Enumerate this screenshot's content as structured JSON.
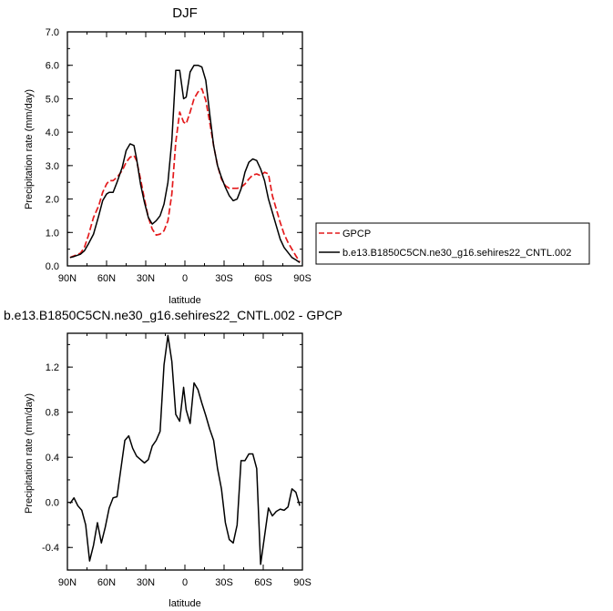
{
  "chart_data": [
    {
      "type": "line",
      "title": "DJF",
      "xlabel": "latitude",
      "ylabel": "Precipitation rate (mm/day)",
      "xlim": [
        90,
        -90
      ],
      "ylim": [
        0,
        7
      ],
      "xtick_values": [
        90,
        60,
        30,
        0,
        -30,
        -60,
        -90
      ],
      "xtick_labels": [
        "90N",
        "60N",
        "30N",
        "0",
        "30S",
        "60S",
        "90S"
      ],
      "ytick_values": [
        0,
        1,
        2,
        3,
        4,
        5,
        6,
        7
      ],
      "ytick_labels": [
        "0.0",
        "1.0",
        "2.0",
        "3.0",
        "4.0",
        "5.0",
        "6.0",
        "7.0"
      ],
      "grid": false,
      "legend_position": "right",
      "series": [
        {
          "name": "GPCP",
          "color": "#e41a1c",
          "dash": "dashed",
          "x": [
            88,
            85,
            80,
            77,
            74,
            70,
            66,
            63,
            60,
            58,
            55,
            52,
            48,
            45,
            42,
            39,
            37,
            34,
            31,
            28,
            25,
            22,
            19,
            16,
            13,
            10,
            7,
            4,
            1,
            -1,
            -4,
            -7,
            -10,
            -13,
            -16,
            -19,
            -22,
            -25,
            -28,
            -31,
            -34,
            -37,
            -40,
            -43,
            -46,
            -49,
            -52,
            -55,
            -58,
            -61,
            -64,
            -67,
            -70,
            -73,
            -76,
            -79,
            -82,
            -85,
            -88
          ],
          "y": [
            0.25,
            0.3,
            0.38,
            0.55,
            0.9,
            1.45,
            1.8,
            2.2,
            2.45,
            2.55,
            2.55,
            2.65,
            2.85,
            3.1,
            3.25,
            3.3,
            3.15,
            2.6,
            2.0,
            1.45,
            1.1,
            0.92,
            0.95,
            1.05,
            1.35,
            2.15,
            3.7,
            4.6,
            4.3,
            4.25,
            4.6,
            5.0,
            5.2,
            5.3,
            4.95,
            4.3,
            3.6,
            3.0,
            2.6,
            2.4,
            2.32,
            2.32,
            2.32,
            2.35,
            2.45,
            2.6,
            2.72,
            2.75,
            2.7,
            2.8,
            2.75,
            2.1,
            1.7,
            1.3,
            0.95,
            0.7,
            0.5,
            0.3,
            0.12
          ]
        },
        {
          "name": "b.e13.B1850C5CN.ne30_g16.sehires22_CNTL.002",
          "color": "#000000",
          "dash": "solid",
          "x": [
            88,
            85,
            80,
            77,
            74,
            70,
            66,
            63,
            60,
            58,
            55,
            52,
            48,
            45,
            42,
            39,
            37,
            34,
            31,
            28,
            25,
            22,
            19,
            16,
            13,
            10,
            7,
            4,
            1,
            -1,
            -4,
            -7,
            -10,
            -13,
            -16,
            -19,
            -22,
            -25,
            -28,
            -31,
            -34,
            -37,
            -40,
            -43,
            -46,
            -49,
            -52,
            -55,
            -58,
            -61,
            -64,
            -67,
            -70,
            -73,
            -76,
            -79,
            -82,
            -85,
            -88
          ],
          "y": [
            0.25,
            0.28,
            0.35,
            0.45,
            0.65,
            0.95,
            1.5,
            1.95,
            2.15,
            2.2,
            2.2,
            2.5,
            2.95,
            3.45,
            3.65,
            3.6,
            3.2,
            2.45,
            1.9,
            1.45,
            1.25,
            1.35,
            1.5,
            1.85,
            2.5,
            3.75,
            5.85,
            5.85,
            5.0,
            5.05,
            5.8,
            6.0,
            6.0,
            5.95,
            5.55,
            4.55,
            3.6,
            3.0,
            2.65,
            2.35,
            2.1,
            1.95,
            2.0,
            2.3,
            2.8,
            3.1,
            3.2,
            3.15,
            2.9,
            2.55,
            2.0,
            1.6,
            1.2,
            0.8,
            0.55,
            0.4,
            0.25,
            0.18,
            0.1
          ]
        }
      ]
    },
    {
      "type": "line",
      "title": "b.e13.B1850C5CN.ne30_g16.sehires22_CNTL.002 - GPCP",
      "xlabel": "latitude",
      "ylabel": "Precipitation rate (mm/day)",
      "xlim": [
        90,
        -90
      ],
      "ylim": [
        -0.6,
        1.5
      ],
      "xtick_values": [
        90,
        60,
        30,
        0,
        -30,
        -60,
        -90
      ],
      "xtick_labels": [
        "90N",
        "60N",
        "30N",
        "0",
        "30S",
        "60S",
        "90S"
      ],
      "ytick_values": [
        -0.4,
        0,
        0.4,
        0.8,
        1.2
      ],
      "ytick_labels": [
        "-0.4",
        "0.0",
        "0.4",
        "0.8",
        "1.2"
      ],
      "grid": false,
      "series": [
        {
          "color": "#000000",
          "dash": "solid",
          "x": [
            88,
            85,
            82,
            79,
            76,
            73,
            70,
            67,
            64,
            61,
            58,
            55,
            52,
            49,
            46,
            43,
            40,
            37,
            34,
            31,
            28,
            25,
            22,
            19,
            16,
            13,
            10,
            7,
            4,
            1,
            -1,
            -4,
            -7,
            -10,
            -13,
            -16,
            -19,
            -22,
            -25,
            -28,
            -31,
            -34,
            -37,
            -40,
            -43,
            -46,
            -49,
            -52,
            -55,
            -58,
            -61,
            -64,
            -67,
            -70,
            -73,
            -76,
            -79,
            -82,
            -85,
            -88
          ],
          "y": [
            -0.01,
            0.04,
            -0.03,
            -0.07,
            -0.2,
            -0.52,
            -0.38,
            -0.18,
            -0.36,
            -0.22,
            -0.05,
            0.04,
            0.05,
            0.3,
            0.55,
            0.59,
            0.48,
            0.41,
            0.38,
            0.35,
            0.38,
            0.5,
            0.55,
            0.63,
            1.22,
            1.48,
            1.25,
            0.78,
            0.72,
            1.02,
            0.82,
            0.7,
            1.06,
            1.0,
            0.88,
            0.77,
            0.65,
            0.55,
            0.3,
            0.12,
            -0.18,
            -0.33,
            -0.36,
            -0.2,
            0.37,
            0.37,
            0.43,
            0.43,
            0.3,
            -0.55,
            -0.3,
            -0.05,
            -0.12,
            -0.08,
            -0.06,
            -0.07,
            -0.04,
            0.12,
            0.09,
            -0.03
          ]
        }
      ]
    }
  ]
}
